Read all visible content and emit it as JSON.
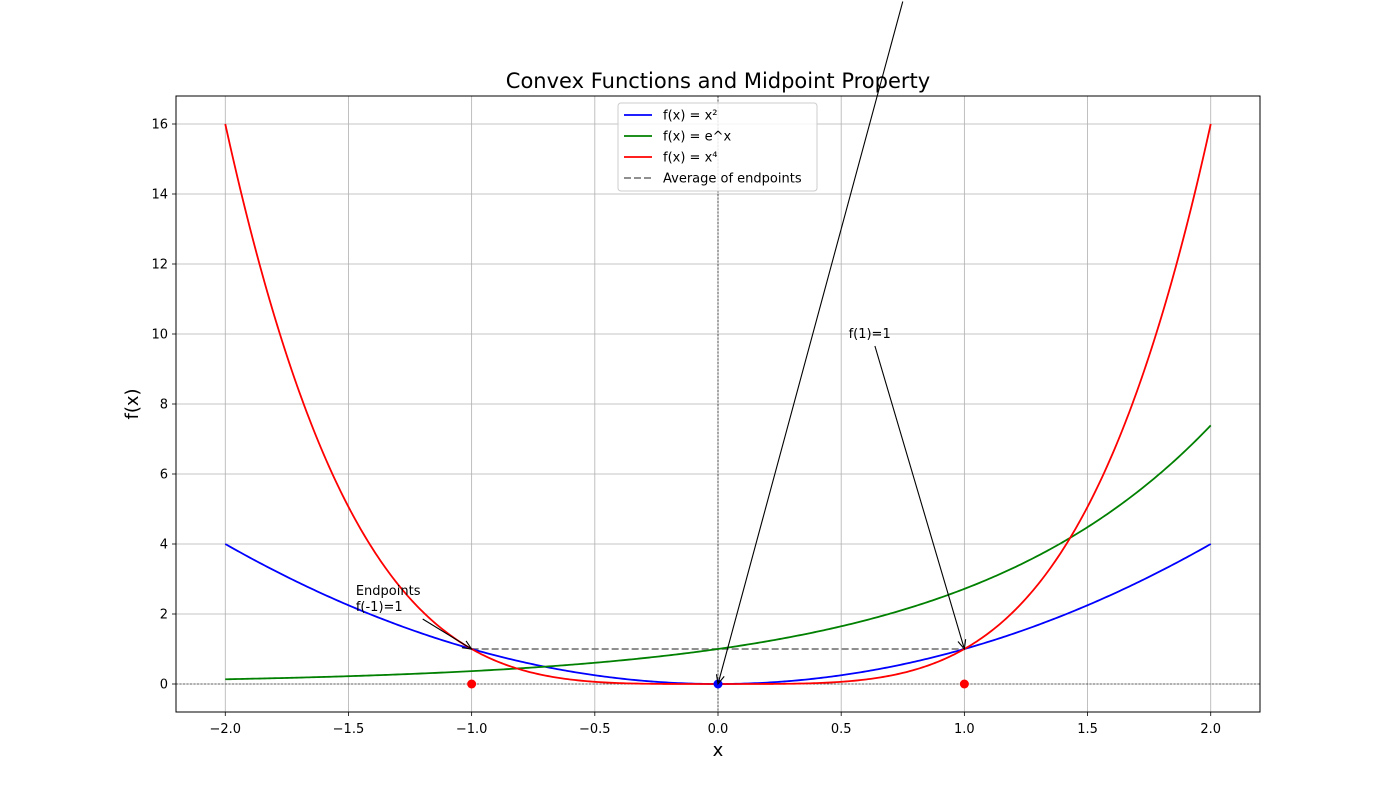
{
  "chart_data": {
    "type": "line",
    "title": "Convex Functions and Midpoint Property",
    "xlabel": "x",
    "ylabel": "f(x)",
    "xlim": [
      -2.2,
      2.2
    ],
    "ylim": [
      -0.8,
      16.8
    ],
    "x_ticks": [
      -2.0,
      -1.5,
      -1.0,
      -0.5,
      0.0,
      0.5,
      1.0,
      1.5,
      2.0
    ],
    "x_tick_labels": [
      "−2.0",
      "−1.5",
      "−1.0",
      "−0.5",
      "0.0",
      "0.5",
      "1.0",
      "1.5",
      "2.0"
    ],
    "y_ticks": [
      0,
      2,
      4,
      6,
      8,
      10,
      12,
      14,
      16
    ],
    "y_tick_labels": [
      "0",
      "2",
      "4",
      "6",
      "8",
      "10",
      "12",
      "14",
      "16"
    ],
    "grid": true,
    "legend_position": "top-center",
    "x_range": [
      -2,
      2
    ],
    "series": [
      {
        "name": "f(x) = x²",
        "function": "x^2",
        "color": "#0000ff",
        "style": "solid"
      },
      {
        "name": "f(x) = e^x",
        "function": "exp(x)",
        "color": "#008000",
        "style": "solid"
      },
      {
        "name": "f(x) = x⁴",
        "function": "x^4",
        "color": "#ff0000",
        "style": "solid"
      },
      {
        "name": "Average of endpoints",
        "color": "#808080",
        "style": "dashed",
        "x": [
          -1,
          1
        ],
        "y": [
          1,
          1
        ]
      }
    ],
    "points": [
      {
        "x": -1,
        "y": 0,
        "color": "#ff0000"
      },
      {
        "x": 1,
        "y": 0,
        "color": "#ff0000"
      },
      {
        "x": 0,
        "y": 0,
        "color": "#0000ff"
      }
    ],
    "annotations": [
      {
        "lines": [
          "Endpoints",
          "f(-1)=1"
        ],
        "text_x": -1.47,
        "text_y": 2.2,
        "target_x": -1,
        "target_y": 1
      },
      {
        "lines": [
          "f(1)=1"
        ],
        "text_x": 0.53,
        "text_y": 10,
        "target_x": 1,
        "target_y": 1
      },
      {
        "lines": [],
        "text_x": 0.75,
        "text_y": 19.5,
        "target_x": 0,
        "target_y": 0
      }
    ]
  }
}
